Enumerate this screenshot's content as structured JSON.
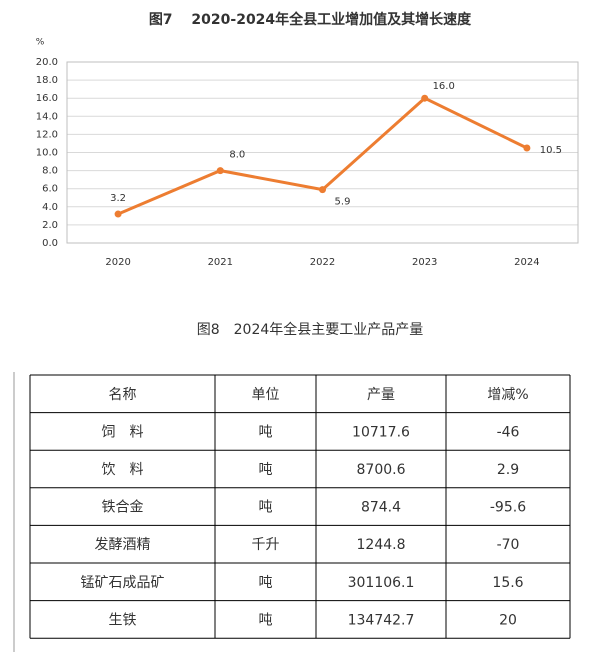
{
  "chart_data": {
    "type": "line",
    "title": "图7　 2020-2024年全县工业增加值及其增长速度",
    "y_unit": "%",
    "categories": [
      "2020",
      "2021",
      "2022",
      "2023",
      "2024"
    ],
    "values": [
      3.2,
      8.0,
      5.9,
      16.0,
      10.5
    ],
    "value_labels": [
      "3.2",
      "8.0",
      "5.9",
      "16.0",
      "10.5"
    ],
    "color": "#ed7d31",
    "ylim": [
      0,
      20
    ],
    "yticks": [
      {
        "value": 0,
        "label": "0.0"
      },
      {
        "value": 2,
        "label": "2.0"
      },
      {
        "value": 4,
        "label": "4.0"
      },
      {
        "value": 6,
        "label": "6.0"
      },
      {
        "value": 8,
        "label": "8.0"
      },
      {
        "value": 10,
        "label": "10.0"
      },
      {
        "value": 12,
        "label": "12.0"
      },
      {
        "value": 14,
        "label": "14.0"
      },
      {
        "value": 16,
        "label": "16.0"
      },
      {
        "value": 18,
        "label": "18.0"
      },
      {
        "value": 20,
        "label": "20.0"
      }
    ],
    "grid": true
  },
  "table": {
    "title": "图8　2024年全县主要工业产品产量",
    "header": [
      "名称",
      "单位",
      "产量",
      "增减%"
    ],
    "rows": [
      [
        "饲　料",
        "吨",
        "10717.6",
        "-46"
      ],
      [
        "饮　料",
        "吨",
        "8700.6",
        "2.9"
      ],
      [
        "铁合金",
        "吨",
        "874.4",
        "-95.6"
      ],
      [
        "发酵酒精",
        "千升",
        "1244.8",
        "-70"
      ],
      [
        "锰矿石成品矿",
        "吨",
        "301106.1",
        "15.6"
      ],
      [
        "生铁",
        "吨",
        "134742.7",
        "20"
      ]
    ]
  }
}
